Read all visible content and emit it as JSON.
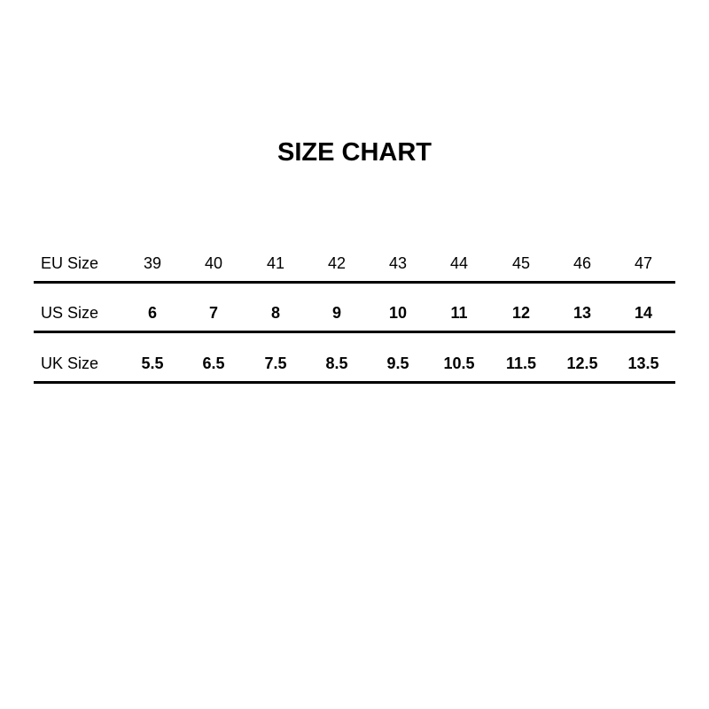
{
  "title": "SIZE CHART",
  "rows": [
    {
      "label": "EU Size",
      "bold": false,
      "values": [
        "39",
        "40",
        "41",
        "42",
        "43",
        "44",
        "45",
        "46",
        "47"
      ]
    },
    {
      "label": "US Size",
      "bold": true,
      "values": [
        "6",
        "7",
        "8",
        "9",
        "10",
        "11",
        "12",
        "13",
        "14"
      ]
    },
    {
      "label": "UK Size",
      "bold": true,
      "values": [
        "5.5",
        "6.5",
        "7.5",
        "8.5",
        "9.5",
        "10.5",
        "11.5",
        "12.5",
        "13.5"
      ]
    }
  ]
}
